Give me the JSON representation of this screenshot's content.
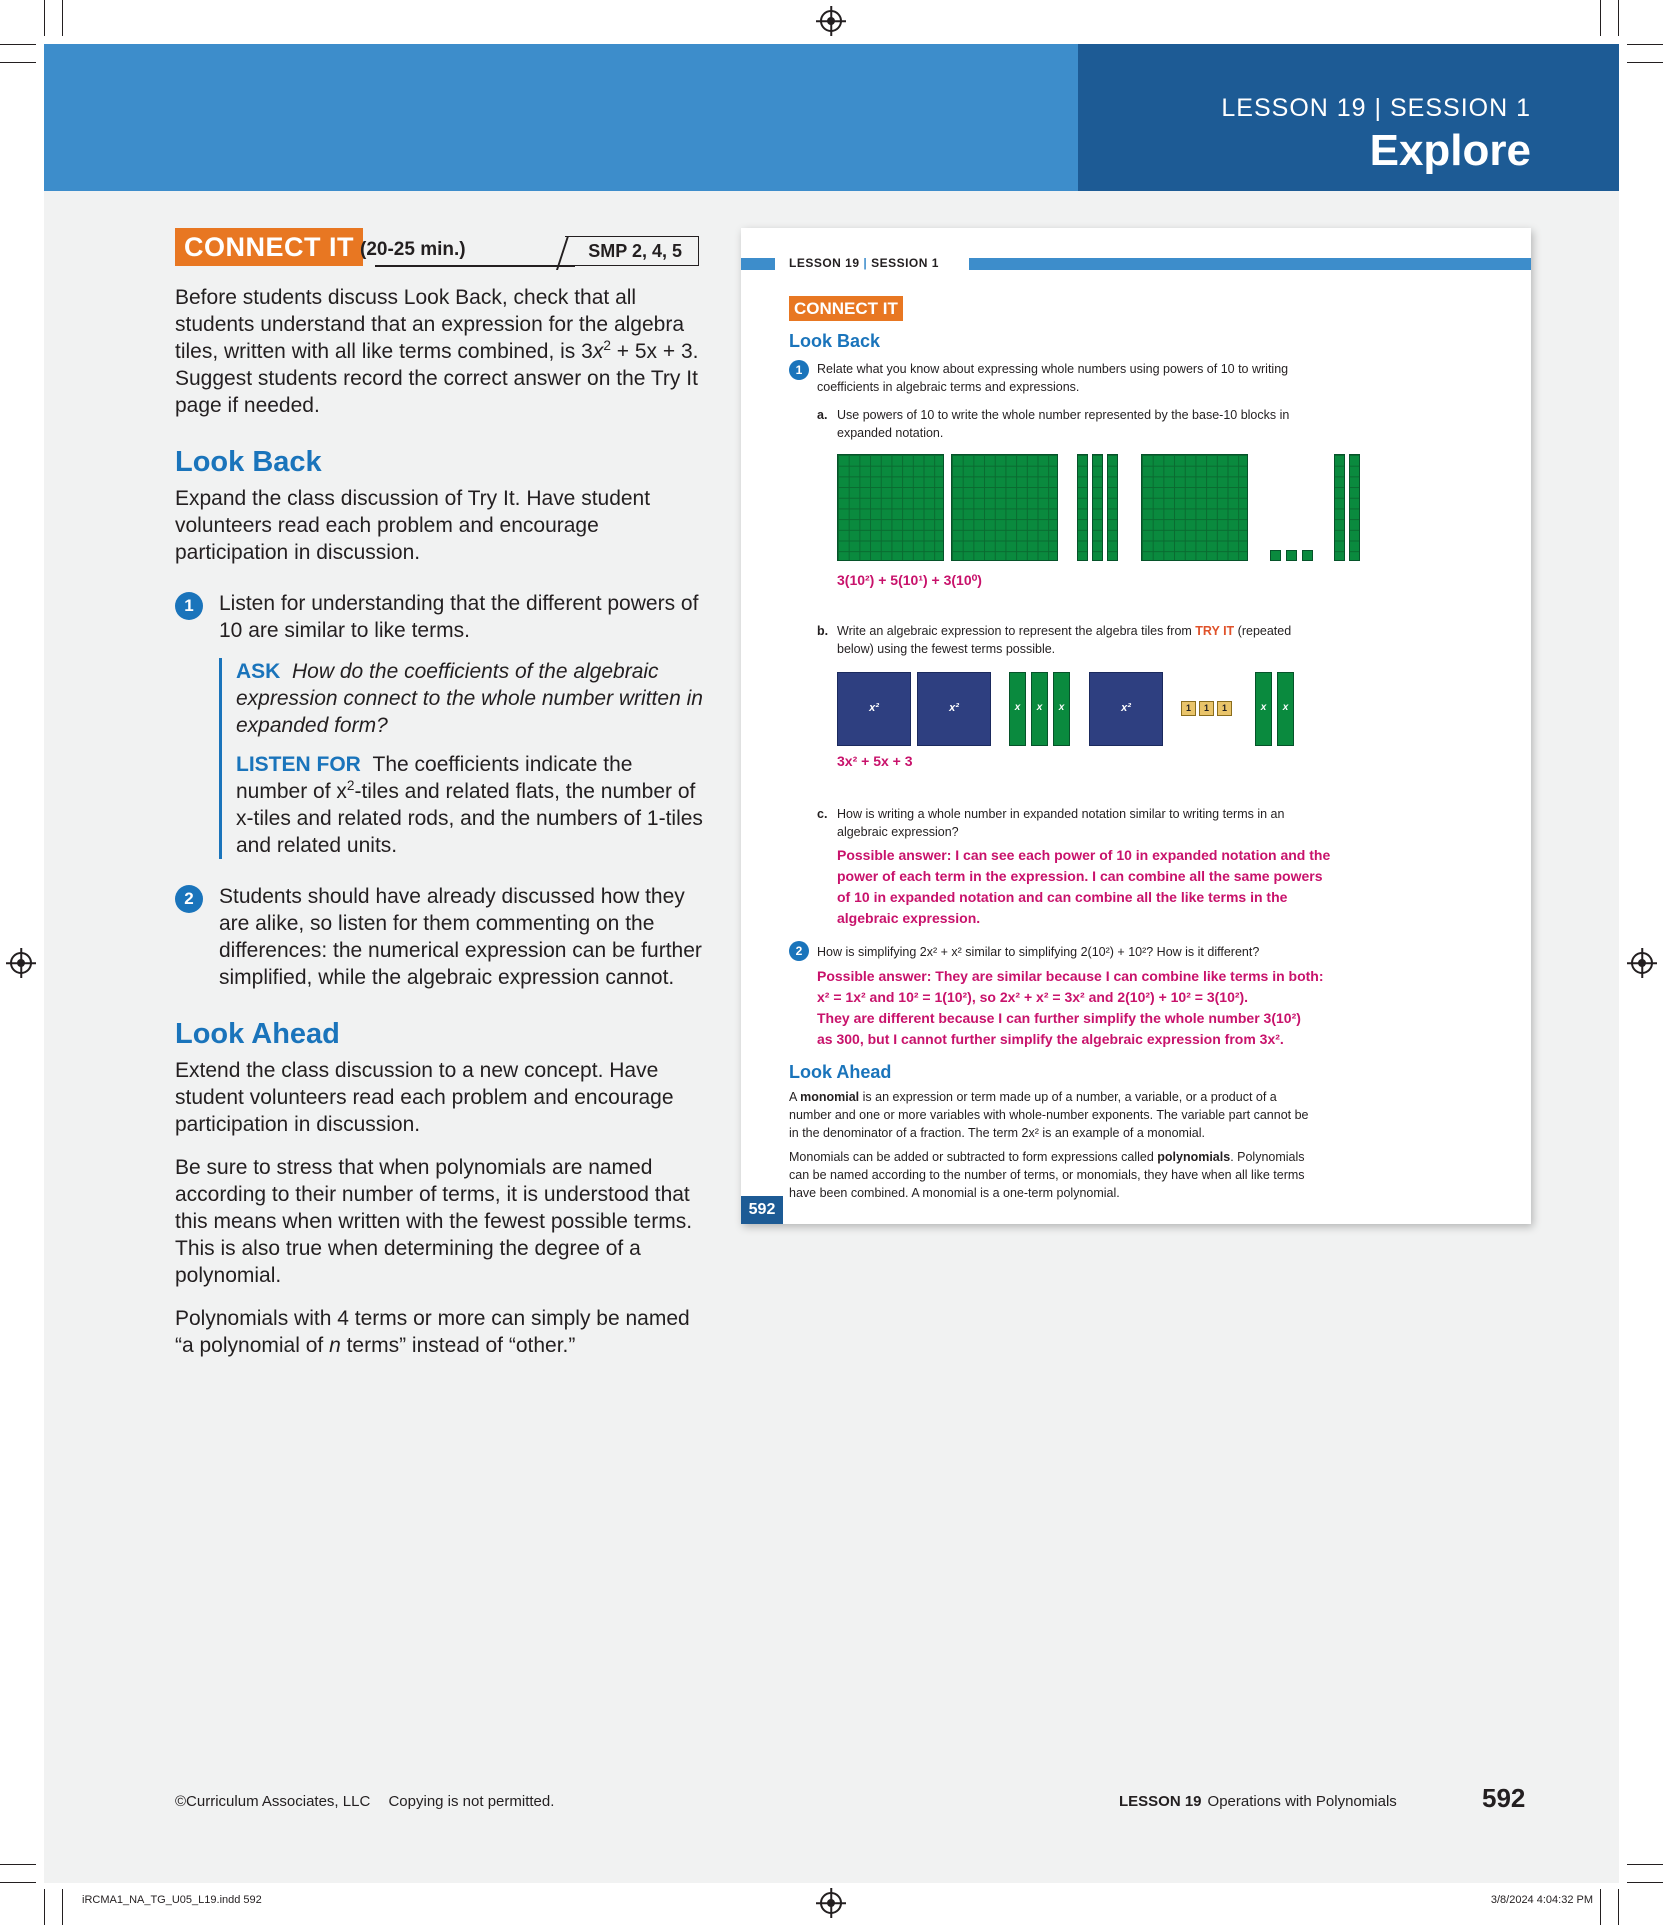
{
  "banner": {
    "lesson": "LESSON 19",
    "separator": "|",
    "session": "SESSION 1",
    "title": "Explore"
  },
  "left": {
    "connect_badge": "CONNECT IT",
    "connect_time": "(20-25 min.)",
    "smp": "SMP 2, 4, 5",
    "intro_before": "Before students discuss Look Back, check that all students understand that an expression for the algebra tiles, written with all like terms combined, is 3",
    "intro_x": "x",
    "intro_sup": "2",
    "intro_after": " + 5x + 3. Suggest students record the correct answer on the Try It page if needed.",
    "look_back_heading": "Look Back",
    "look_back_text": "Expand the class discussion of Try It. Have student volunteers read each problem and encourage participation in discussion.",
    "item1_num": "1",
    "item1_text": "Listen for understanding that the different powers of 10 are similar to like terms.",
    "ask_label": "ASK",
    "ask_text": "How do the coefficients of the algebraic expression connect to the whole number written in expanded form?",
    "listen_label": "LISTEN FOR",
    "listen_text_1": "The coefficients indicate the number of x",
    "listen_sup": "2",
    "listen_text_2": "-tiles and related flats, the number of x-tiles and related rods, and the numbers of 1-tiles and related units.",
    "item2_num": "2",
    "item2_text": "Students should have already discussed how they are alike, so listen for them commenting on the differences: the numerical expression can be further simplified, while the algebraic expression cannot.",
    "look_ahead_heading": "Look Ahead",
    "look_ahead_text": "Extend the class discussion to a new concept. Have student volunteers read each problem and encourage participation in discussion.",
    "stress_text": "Be sure to stress that when polynomials are named according to their number of terms, it is understood that this means when written with the fewest possible terms. This is also true when determining the degree of a polynomial.",
    "poly_text_1": "Polynomials with 4 terms or more can simply be named “a polynomial of ",
    "poly_n": "n",
    "poly_text_2": " terms” instead of “other.”"
  },
  "mini": {
    "head_lesson": "LESSON 19",
    "head_sep": "|",
    "head_session": "SESSION 1",
    "connect_badge": "CONNECT IT",
    "look_back": "Look Back",
    "q1_num": "1",
    "q1_text": "Relate what you know about expressing whole numbers using powers of 10 to writing coefficients in algebraic terms and expressions.",
    "qa_label": "a.",
    "qa_text": "Use powers of 10 to write the whole number represented by the base-10 blocks in expanded notation.",
    "qa_answer": "3(10²) + 5(10¹) + 3(10⁰)",
    "qb_label": "b.",
    "qb_text_1": "Write an algebraic expression to represent the algebra tiles from ",
    "qb_tryit": "TRY IT",
    "qb_text_2": " (repeated below) using the fewest terms possible.",
    "tile_x2": "x²",
    "tile_x": "x",
    "tile_1": "1",
    "qb_answer": "3x² + 5x + 3",
    "qc_label": "c.",
    "qc_text": "How is writing a whole number in expanded notation similar to writing terms in an algebraic expression?",
    "qc_answer": "Possible answer: I can see each power of 10 in expanded notation and the power of each term in the expression. I can combine all the same powers of 10 in expanded notation and can combine all the like terms in the algebraic expression.",
    "q2_num": "2",
    "q2_text": "How is simplifying 2x² + x² similar to simplifying 2(10²) + 10²? How is it different?",
    "q2_answer_1": "Possible answer: They are similar because I can combine like terms in both:",
    "q2_answer_2": "x² = 1x² and 10² = 1(10²), so 2x² + x² = 3x² and 2(10²) + 10² = 3(10²).",
    "q2_answer_3": "They are different because I can further simplify the whole number 3(10²)",
    "q2_answer_4": "as 300, but I cannot further simplify the algebraic expression from 3x².",
    "look_ahead": "Look Ahead",
    "la_1a": "A ",
    "la_monomial": "monomial",
    "la_1b": " is an expression or term made up of a number, a variable, or a product of a number and one or more variables with whole-number exponents. The variable part cannot be in the denominator of a fraction. The term 2x² is an example of a monomial.",
    "la_2a": "Monomials can be added or subtracted to form expressions called ",
    "la_polynomials": "polynomials",
    "la_2b": ". Polynomials can be named according to the number of terms, or monomials, they have when all like terms have been combined. A monomial is a one-term polynomial.",
    "page_num": "592"
  },
  "footer": {
    "copyright": "©Curriculum Associates, LLC",
    "copying": "Copying is not permitted.",
    "lesson": "LESSON 19",
    "lesson_title": "Operations with Polynomials",
    "page_num": "592"
  },
  "slug": {
    "file": "iRCMA1_NA_TG_U05_L19.indd   592",
    "date": "3/8/2024   4:04:32 PM"
  }
}
